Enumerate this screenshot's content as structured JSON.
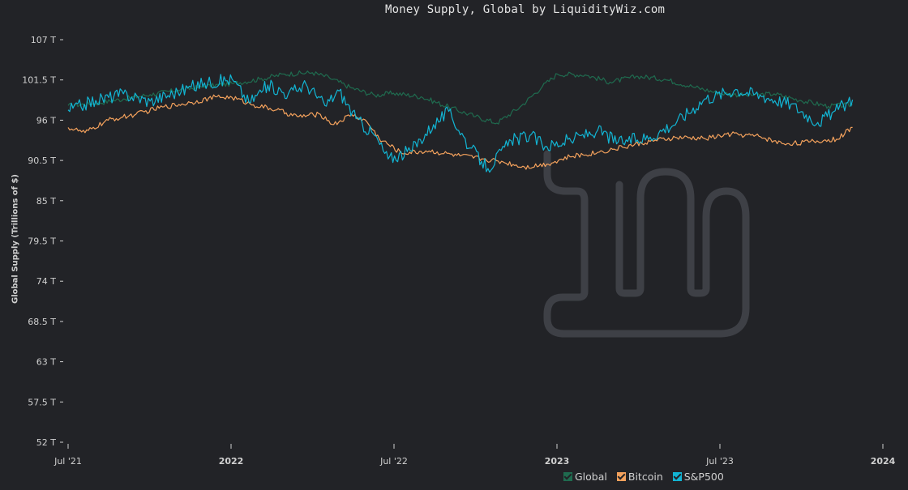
{
  "chart_data": {
    "type": "line",
    "title": "Money Supply, Global by LiquidityWiz.com",
    "ylabel": "Global Supply (Trillions of $)",
    "xlabel": "",
    "x_ticks": [
      "Jul '21",
      "2022",
      "Jul '22",
      "2023",
      "Jul '23",
      "2024"
    ],
    "x_ticks_bold": [
      false,
      true,
      false,
      true,
      false,
      true
    ],
    "x_range": [
      "2021-07-01",
      "2024-01-01"
    ],
    "y_ticks": [
      "107 T",
      "101.5 T",
      "96 T",
      "90.5 T",
      "85 T",
      "79.5 T",
      "74 T",
      "68.5 T",
      "63 T",
      "57.5 T",
      "52 T"
    ],
    "ylim": [
      52,
      107
    ],
    "grid": false,
    "legend_position": "bottom-right",
    "series": [
      {
        "name": "Global",
        "color": "#1f6b4f",
        "points": [
          [
            "2021-07-01",
            98.0
          ],
          [
            "2021-08-01",
            98.3
          ],
          [
            "2021-09-01",
            98.9
          ],
          [
            "2021-10-01",
            99.5
          ],
          [
            "2021-11-01",
            100.1
          ],
          [
            "2021-12-01",
            100.6
          ],
          [
            "2022-01-01",
            101.0
          ],
          [
            "2022-02-01",
            101.6
          ],
          [
            "2022-03-01",
            102.3
          ],
          [
            "2022-04-01",
            102.5
          ],
          [
            "2022-04-20",
            101.8
          ],
          [
            "2022-05-15",
            100.4
          ],
          [
            "2022-06-10",
            99.4
          ],
          [
            "2022-07-01",
            99.7
          ],
          [
            "2022-08-01",
            99.2
          ],
          [
            "2022-09-01",
            97.8
          ],
          [
            "2022-10-01",
            96.5
          ],
          [
            "2022-10-25",
            95.6
          ],
          [
            "2022-11-20",
            97.8
          ],
          [
            "2022-12-15",
            100.6
          ],
          [
            "2023-01-01",
            102.3
          ],
          [
            "2023-02-01",
            102.2
          ],
          [
            "2023-03-01",
            101.2
          ],
          [
            "2023-04-01",
            102.0
          ],
          [
            "2023-05-01",
            101.6
          ],
          [
            "2023-06-01",
            100.6
          ],
          [
            "2023-07-01",
            99.7
          ],
          [
            "2023-08-01",
            99.4
          ],
          [
            "2023-09-01",
            99.6
          ],
          [
            "2023-10-01",
            98.7
          ],
          [
            "2023-11-01",
            97.9
          ],
          [
            "2023-11-28",
            98.1
          ]
        ]
      },
      {
        "name": "Bitcoin",
        "color": "#f3a15c",
        "points": [
          [
            "2021-07-01",
            95.0
          ],
          [
            "2021-07-20",
            94.3
          ],
          [
            "2021-08-15",
            96.0
          ],
          [
            "2021-09-15",
            96.8
          ],
          [
            "2021-10-15",
            97.8
          ],
          [
            "2021-11-15",
            98.4
          ],
          [
            "2021-12-15",
            99.2
          ],
          [
            "2022-01-01",
            99.1
          ],
          [
            "2022-01-25",
            98.1
          ],
          [
            "2022-02-20",
            97.4
          ],
          [
            "2022-03-15",
            96.5
          ],
          [
            "2022-04-10",
            96.8
          ],
          [
            "2022-04-25",
            95.4
          ],
          [
            "2022-05-15",
            96.8
          ],
          [
            "2022-06-01",
            95.8
          ],
          [
            "2022-06-15",
            93.5
          ],
          [
            "2022-07-10",
            91.5
          ],
          [
            "2022-08-10",
            91.8
          ],
          [
            "2022-09-10",
            91.2
          ],
          [
            "2022-10-10",
            90.7
          ],
          [
            "2022-11-01",
            90.3
          ],
          [
            "2022-11-25",
            89.6
          ],
          [
            "2022-12-20",
            90.0
          ],
          [
            "2023-01-15",
            91.0
          ],
          [
            "2023-02-15",
            91.6
          ],
          [
            "2023-03-15",
            92.3
          ],
          [
            "2023-04-15",
            93.1
          ],
          [
            "2023-05-15",
            93.6
          ],
          [
            "2023-06-15",
            93.5
          ],
          [
            "2023-07-15",
            94.1
          ],
          [
            "2023-08-15",
            93.8
          ],
          [
            "2023-09-10",
            92.8
          ],
          [
            "2023-10-10",
            93.0
          ],
          [
            "2023-11-10",
            93.4
          ],
          [
            "2023-11-28",
            95.0
          ]
        ]
      },
      {
        "name": "S&P500",
        "color": "#12b5d4",
        "points": [
          [
            "2021-07-01",
            97.4
          ],
          [
            "2021-08-01",
            98.7
          ],
          [
            "2021-09-01",
            99.6
          ],
          [
            "2021-10-01",
            98.6
          ],
          [
            "2021-11-01",
            99.9
          ],
          [
            "2021-12-01",
            101.1
          ],
          [
            "2022-01-01",
            101.6
          ],
          [
            "2022-01-20",
            98.4
          ],
          [
            "2022-02-10",
            100.8
          ],
          [
            "2022-03-05",
            99.6
          ],
          [
            "2022-03-25",
            100.9
          ],
          [
            "2022-04-15",
            98.0
          ],
          [
            "2022-05-01",
            100.0
          ],
          [
            "2022-05-20",
            96.2
          ],
          [
            "2022-06-10",
            93.9
          ],
          [
            "2022-06-25",
            90.7
          ],
          [
            "2022-07-20",
            91.8
          ],
          [
            "2022-08-15",
            95.4
          ],
          [
            "2022-09-01",
            97.2
          ],
          [
            "2022-09-25",
            92.2
          ],
          [
            "2022-10-15",
            89.4
          ],
          [
            "2022-11-10",
            93.2
          ],
          [
            "2022-12-01",
            93.9
          ],
          [
            "2022-12-20",
            92.4
          ],
          [
            "2023-01-20",
            93.5
          ],
          [
            "2023-02-15",
            94.6
          ],
          [
            "2023-03-10",
            93.0
          ],
          [
            "2023-04-15",
            93.7
          ],
          [
            "2023-05-15",
            95.8
          ],
          [
            "2023-06-15",
            98.9
          ],
          [
            "2023-07-20",
            100.2
          ],
          [
            "2023-08-20",
            99.3
          ],
          [
            "2023-09-20",
            98.2
          ],
          [
            "2023-10-20",
            95.7
          ],
          [
            "2023-11-05",
            97.0
          ],
          [
            "2023-11-28",
            98.8
          ]
        ]
      }
    ]
  },
  "watermark": {
    "icon": "liquiditywiz-logo-icon"
  }
}
